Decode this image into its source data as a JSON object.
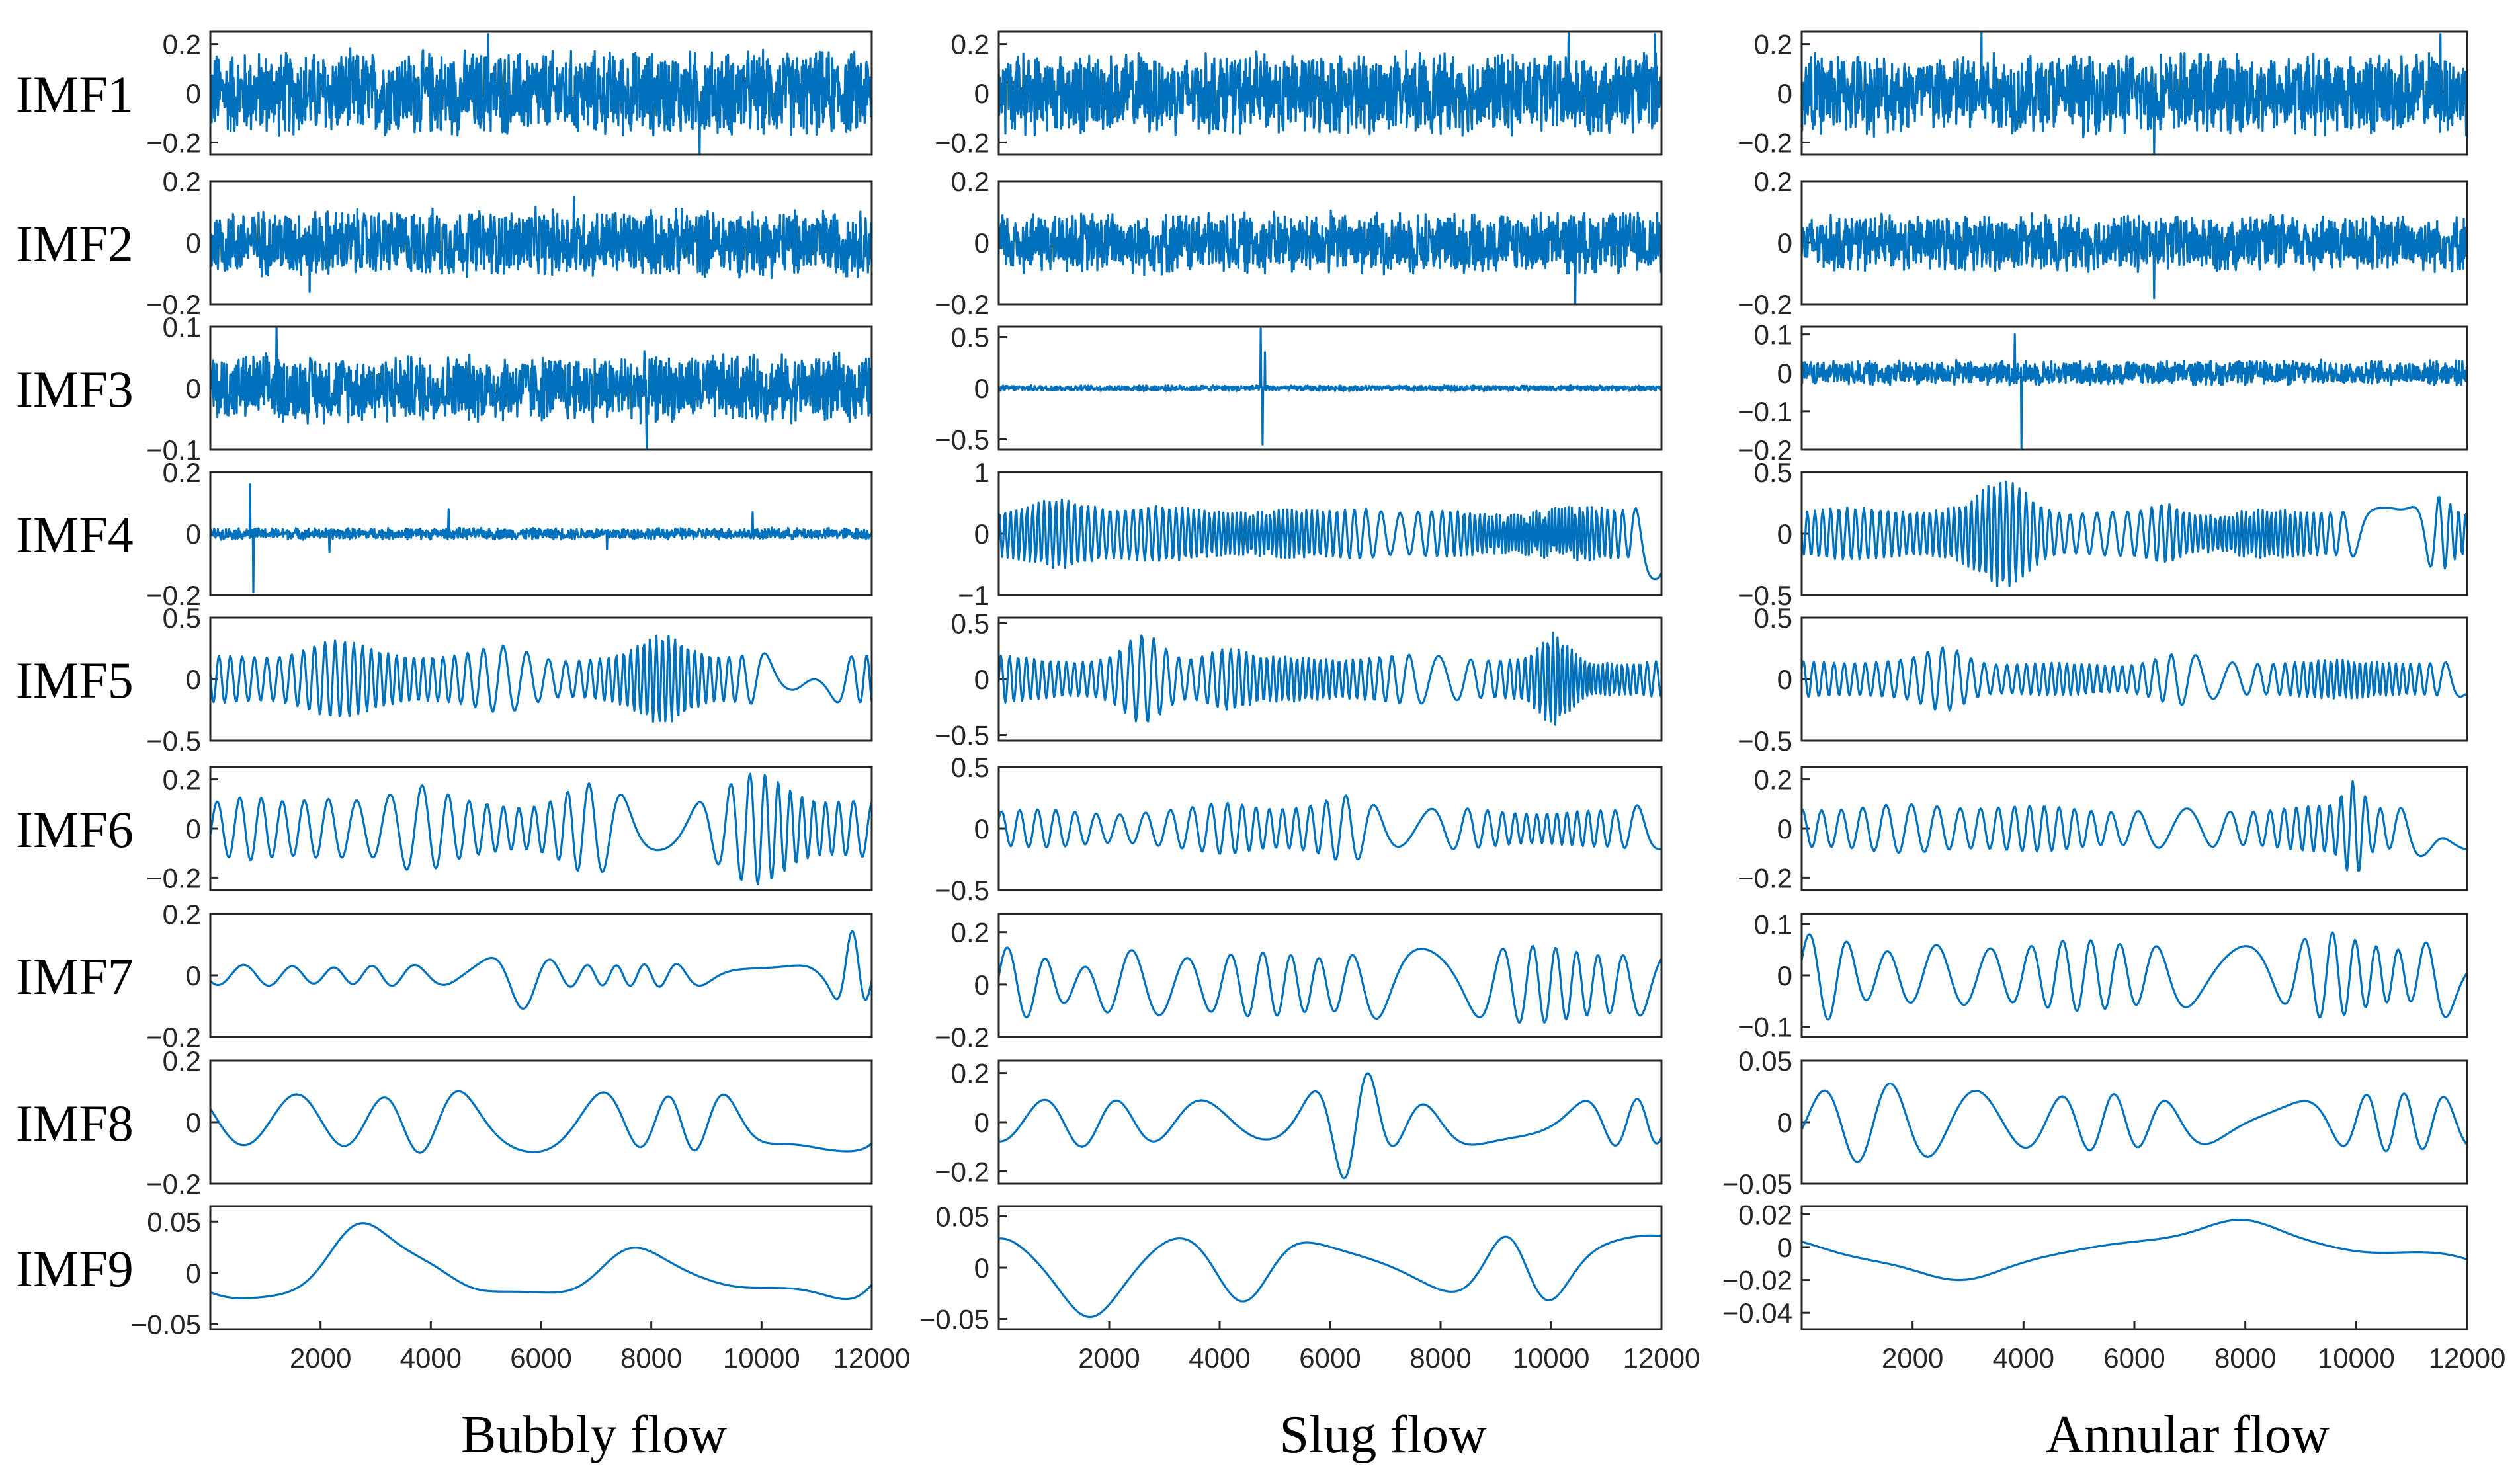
{
  "chart_data": {
    "type": "line",
    "layout": "9 rows x 3 columns of time-series subplots",
    "row_labels": [
      "IMF1",
      "IMF2",
      "IMF3",
      "IMF4",
      "IMF5",
      "IMF6",
      "IMF7",
      "IMF8",
      "IMF9"
    ],
    "columns": [
      "Bubbly flow",
      "Slug flow",
      "Annular flow"
    ],
    "x_range": [
      0,
      12000
    ],
    "x_ticks": [
      2000,
      4000,
      6000,
      8000,
      10000,
      12000
    ],
    "x_tick_labels": [
      "2000",
      "4000",
      "6000",
      "8000",
      "10000",
      "12000"
    ],
    "line_color": "#0072BD",
    "panels": [
      [
        {
          "imf": "IMF1",
          "ylim": [
            -0.25,
            0.25
          ],
          "yticks": [
            0.2,
            0,
            -0.2
          ],
          "ytick_labels": [
            "0.2",
            "0",
            "−0.2"
          ],
          "amplitude": 0.19,
          "kind": "noise",
          "cycles": 1500,
          "spikes": [
            [
              0.42,
              0.24
            ],
            [
              0.74,
              -0.25
            ]
          ]
        },
        {
          "imf": "IMF2",
          "ylim": [
            -0.2,
            0.2
          ],
          "yticks": [
            0.2,
            0,
            -0.2
          ],
          "ytick_labels": [
            "0.2",
            "0",
            "−0.2"
          ],
          "amplitude": 0.12,
          "kind": "noise",
          "cycles": 900,
          "spikes": [
            [
              0.15,
              -0.16
            ],
            [
              0.55,
              0.15
            ]
          ]
        },
        {
          "imf": "IMF3",
          "ylim": [
            -0.1,
            0.1
          ],
          "yticks": [
            0.1,
            0,
            -0.1
          ],
          "ytick_labels": [
            "0.1",
            "0",
            "−0.1"
          ],
          "amplitude": 0.06,
          "kind": "noise",
          "cycles": 600,
          "spikes": [
            [
              0.1,
              0.1
            ],
            [
              0.66,
              -0.1
            ]
          ]
        },
        {
          "imf": "IMF4",
          "ylim": [
            -0.2,
            0.2
          ],
          "yticks": [
            0.2,
            0,
            -0.2
          ],
          "ytick_labels": [
            "0.2",
            "0",
            "−0.2"
          ],
          "amplitude": 0.02,
          "kind": "noise",
          "cycles": 400,
          "spikes": [
            [
              0.06,
              0.16
            ],
            [
              0.065,
              -0.19
            ],
            [
              0.18,
              -0.06
            ],
            [
              0.36,
              0.08
            ],
            [
              0.6,
              -0.05
            ],
            [
              0.82,
              0.07
            ]
          ]
        },
        {
          "imf": "IMF5",
          "ylim": [
            -0.5,
            0.5
          ],
          "yticks": [
            0.5,
            0,
            -0.5
          ],
          "ytick_labels": [
            "0.5",
            "0",
            "−0.5"
          ],
          "amplitude": 0.22,
          "kind": "wave",
          "cycles": 60,
          "bursts": [
            [
              0.18,
              0.06,
              1.5
            ],
            [
              0.45,
              0.05,
              1.4
            ],
            [
              0.69,
              0.05,
              2.2
            ],
            [
              0.9,
              0.03,
              1.6
            ]
          ]
        },
        {
          "imf": "IMF6",
          "ylim": [
            -0.25,
            0.25
          ],
          "yticks": [
            0.2,
            0,
            -0.2
          ],
          "ytick_labels": [
            "0.2",
            "0",
            "−0.2"
          ],
          "amplitude": 0.12,
          "kind": "wave",
          "cycles": 28,
          "bursts": [
            [
              0.06,
              0.04,
              1.4
            ],
            [
              0.31,
              0.05,
              1.8
            ],
            [
              0.57,
              0.06,
              1.9
            ],
            [
              0.83,
              0.06,
              2.0
            ]
          ]
        },
        {
          "imf": "IMF7",
          "ylim": [
            -0.2,
            0.2
          ],
          "yticks": [
            0.2,
            0,
            -0.2
          ],
          "ytick_labels": [
            "0.2",
            "0",
            "−0.2"
          ],
          "amplitude": 0.04,
          "kind": "wave",
          "cycles": 14,
          "bursts": [
            [
              0.46,
              0.04,
              3.0
            ],
            [
              0.97,
              0.025,
              5.0
            ]
          ]
        },
        {
          "imf": "IMF8",
          "ylim": [
            -0.2,
            0.2
          ],
          "yticks": [
            0.2,
            0,
            -0.2
          ],
          "ytick_labels": [
            "0.2",
            "0",
            "−0.2"
          ],
          "amplitude": 0.11,
          "kind": "wave",
          "cycles": 7,
          "bursts": []
        },
        {
          "imf": "IMF9",
          "ylim": [
            -0.055,
            0.065
          ],
          "yticks": [
            0.05,
            0,
            -0.05
          ],
          "ytick_labels": [
            "0.05",
            "0",
            "−0.05"
          ],
          "amplitude": 0.03,
          "kind": "wave",
          "cycles": 2.4,
          "bursts": [
            [
              0.22,
              0.08,
              1.8
            ],
            [
              0.37,
              0.06,
              1.7
            ]
          ]
        }
      ],
      [
        {
          "imf": "IMF1",
          "ylim": [
            -0.25,
            0.25
          ],
          "yticks": [
            0.2,
            0,
            -0.2
          ],
          "ytick_labels": [
            "0.2",
            "0",
            "−0.2"
          ],
          "amplitude": 0.18,
          "kind": "noise",
          "cycles": 1500,
          "spikes": [
            [
              0.86,
              0.25
            ],
            [
              0.99,
              0.24
            ]
          ]
        },
        {
          "imf": "IMF2",
          "ylim": [
            -0.2,
            0.2
          ],
          "yticks": [
            0.2,
            0,
            -0.2
          ],
          "ytick_labels": [
            "0.2",
            "0",
            "−0.2"
          ],
          "amplitude": 0.11,
          "kind": "noise",
          "cycles": 900,
          "spikes": [
            [
              0.87,
              0.2
            ],
            [
              0.87,
              -0.2
            ]
          ]
        },
        {
          "imf": "IMF3",
          "ylim": [
            -0.6,
            0.6
          ],
          "yticks": [
            0.5,
            0,
            -0.5
          ],
          "ytick_labels": [
            "0.5",
            "0",
            "−0.5"
          ],
          "amplitude": 0.03,
          "kind": "noise",
          "cycles": 500,
          "spikes": [
            [
              0.395,
              0.58
            ],
            [
              0.398,
              -0.55
            ],
            [
              0.402,
              0.35
            ]
          ]
        },
        {
          "imf": "IMF4",
          "ylim": [
            -1,
            1
          ],
          "yticks": [
            1,
            0,
            -1
          ],
          "ytick_labels": [
            "1",
            "0",
            "−1"
          ],
          "amplitude": 0.45,
          "kind": "wave",
          "cycles": 110,
          "bursts": [
            [
              0.1,
              0.05,
              1.5
            ],
            [
              0.55,
              0.04,
              1.4
            ],
            [
              0.99,
              0.02,
              2.0
            ]
          ]
        },
        {
          "imf": "IMF5",
          "ylim": [
            -0.55,
            0.55
          ],
          "yticks": [
            0.5,
            0,
            -0.5
          ],
          "ytick_labels": [
            "0.5",
            "0",
            "−0.5"
          ],
          "amplitude": 0.22,
          "kind": "wave",
          "cycles": 75,
          "bursts": [
            [
              0.22,
              0.04,
              2.2
            ],
            [
              0.34,
              0.04,
              1.8
            ],
            [
              0.84,
              0.03,
              2.2
            ]
          ]
        },
        {
          "imf": "IMF6",
          "ylim": [
            -0.5,
            0.5
          ],
          "yticks": [
            0.5,
            0,
            -0.5
          ],
          "ytick_labels": [
            "0.5",
            "0",
            "−0.5"
          ],
          "amplitude": 0.18,
          "kind": "wave",
          "cycles": 34,
          "bursts": [
            [
              0.35,
              0.05,
              1.5
            ],
            [
              0.53,
              0.04,
              1.6
            ],
            [
              0.98,
              0.03,
              1.6
            ]
          ]
        },
        {
          "imf": "IMF7",
          "ylim": [
            -0.2,
            0.27
          ],
          "yticks": [
            0.2,
            0,
            -0.2
          ],
          "ytick_labels": [
            "0.2",
            "0",
            "−0.2"
          ],
          "amplitude": 0.15,
          "kind": "wave",
          "cycles": 16,
          "bursts": [
            [
              0.12,
              0.05,
              0.5
            ]
          ]
        },
        {
          "imf": "IMF8",
          "ylim": [
            -0.25,
            0.25
          ],
          "yticks": [
            0.2,
            0,
            -0.2
          ],
          "ytick_labels": [
            "0.2",
            "0",
            "−0.2"
          ],
          "amplitude": 0.1,
          "kind": "wave",
          "cycles": 8,
          "bursts": [
            [
              0.5,
              0.05,
              1.9
            ],
            [
              0.55,
              0.04,
              2.0
            ]
          ]
        },
        {
          "imf": "IMF9",
          "ylim": [
            -0.06,
            0.06
          ],
          "yticks": [
            0.05,
            0,
            -0.05
          ],
          "ytick_labels": [
            "0.05",
            "0",
            "−0.05"
          ],
          "amplitude": 0.035,
          "kind": "wave",
          "cycles": 4,
          "bursts": [
            [
              0.13,
              0.06,
              1.5
            ]
          ]
        }
      ],
      [
        {
          "imf": "IMF1",
          "ylim": [
            -0.25,
            0.25
          ],
          "yticks": [
            0.2,
            0,
            -0.2
          ],
          "ytick_labels": [
            "0.2",
            "0",
            "−0.2"
          ],
          "amplitude": 0.18,
          "kind": "noise",
          "cycles": 1500,
          "spikes": [
            [
              0.27,
              0.25
            ],
            [
              0.53,
              -0.25
            ],
            [
              0.96,
              0.24
            ]
          ]
        },
        {
          "imf": "IMF2",
          "ylim": [
            -0.2,
            0.2
          ],
          "yticks": [
            0.2,
            0,
            -0.2
          ],
          "ytick_labels": [
            "0.2",
            "0",
            "−0.2"
          ],
          "amplitude": 0.1,
          "kind": "noise",
          "cycles": 900,
          "spikes": [
            [
              0.53,
              0.18
            ],
            [
              0.53,
              -0.18
            ]
          ]
        },
        {
          "imf": "IMF3",
          "ylim": [
            -0.2,
            0.12
          ],
          "yticks": [
            0.1,
            0,
            -0.1,
            -0.2
          ],
          "ytick_labels": [
            "0.1",
            "0",
            "−0.1",
            "−0.2"
          ],
          "amplitude": 0.035,
          "kind": "noise",
          "cycles": 600,
          "spikes": [
            [
              0.32,
              0.1
            ],
            [
              0.33,
              -0.2
            ]
          ]
        },
        {
          "imf": "IMF4",
          "ylim": [
            -0.5,
            0.5
          ],
          "yticks": [
            0.5,
            0,
            -0.5
          ],
          "ytick_labels": [
            "0.5",
            "0",
            "−0.5"
          ],
          "amplitude": 0.22,
          "kind": "wave",
          "cycles": 90,
          "bursts": [
            [
              0.31,
              0.05,
              2.2
            ],
            [
              0.55,
              0.03,
              1.6
            ],
            [
              0.96,
              0.02,
              1.6
            ]
          ]
        },
        {
          "imf": "IMF5",
          "ylim": [
            -0.5,
            0.5
          ],
          "yticks": [
            0.5,
            0,
            -0.5
          ],
          "ytick_labels": [
            "0.5",
            "0",
            "−0.5"
          ],
          "amplitude": 0.16,
          "kind": "wave",
          "cycles": 60,
          "bursts": [
            [
              0.22,
              0.04,
              1.8
            ],
            [
              0.56,
              0.05,
              1.6
            ]
          ]
        },
        {
          "imf": "IMF6",
          "ylim": [
            -0.25,
            0.25
          ],
          "yticks": [
            0.2,
            0,
            -0.2
          ],
          "ytick_labels": [
            "0.2",
            "0",
            "−0.2"
          ],
          "amplitude": 0.1,
          "kind": "wave",
          "cycles": 32,
          "bursts": [
            [
              0.83,
              0.02,
              2.2
            ],
            [
              0.96,
              0.025,
              2.2
            ]
          ]
        },
        {
          "imf": "IMF7",
          "ylim": [
            -0.12,
            0.12
          ],
          "yticks": [
            0.1,
            0,
            -0.1
          ],
          "ytick_labels": [
            "0.1",
            "0",
            "−0.1"
          ],
          "amplitude": 0.07,
          "kind": "wave",
          "cycles": 16,
          "bursts": [
            [
              0.04,
              0.04,
              1.6
            ],
            [
              0.78,
              0.05,
              1.6
            ],
            [
              0.96,
              0.03,
              1.6
            ]
          ]
        },
        {
          "imf": "IMF8",
          "ylim": [
            -0.05,
            0.05
          ],
          "yticks": [
            0.05,
            0,
            -0.05
          ],
          "ytick_labels": [
            "0.05",
            "0",
            "−0.05"
          ],
          "amplitude": 0.025,
          "kind": "wave",
          "cycles": 9,
          "bursts": [
            [
              0.12,
              0.08,
              1.7
            ]
          ]
        },
        {
          "imf": "IMF9",
          "ylim": [
            -0.05,
            0.025
          ],
          "yticks": [
            0.02,
            0,
            -0.02,
            -0.04
          ],
          "ytick_labels": [
            "0.02",
            "0",
            "−0.02",
            "−0.04"
          ],
          "amplitude": 0.02,
          "kind": "wave",
          "cycles": 1.2,
          "bursts": []
        }
      ]
    ]
  }
}
